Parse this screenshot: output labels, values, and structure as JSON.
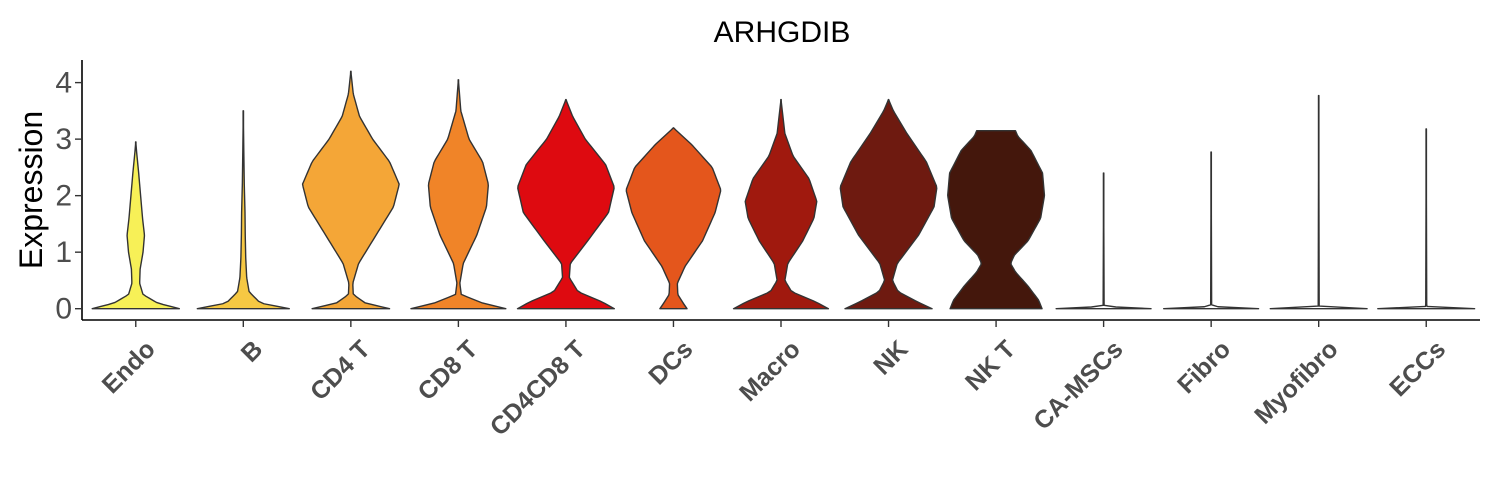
{
  "chart_data": {
    "type": "violin",
    "title": "ARHGDIB",
    "xlabel": "",
    "ylabel": "Expression",
    "ylim": [
      -0.2,
      4.4
    ],
    "yticks": [
      0,
      1,
      2,
      3,
      4
    ],
    "grid": false,
    "legend": "none",
    "categories": [
      "Endo",
      "B",
      "CD4 T",
      "CD8 T",
      "CD4CD8 T",
      "DCs",
      "Macro",
      "NK",
      "NK T",
      "CA-MSCs",
      "Fibro",
      "Myofibro",
      "ECCs"
    ],
    "colors": [
      "#F7F057",
      "#F6C843",
      "#F4A637",
      "#F08428",
      "#DE0A10",
      "#E4561C",
      "#A0190E",
      "#6E1A10",
      "#44170C",
      "#FFFFFF",
      "#FFFFFF",
      "#FFFFFF",
      "#FFFFFF"
    ],
    "max_values": [
      2.95,
      3.5,
      4.2,
      4.05,
      3.7,
      3.2,
      3.7,
      3.7,
      3.15,
      2.4,
      2.77,
      3.77,
      3.18
    ],
    "density_profiles": [
      [
        [
          0,
          0.9
        ],
        [
          0.1,
          0.45
        ],
        [
          0.25,
          0.15
        ],
        [
          0.45,
          0.08
        ],
        [
          0.7,
          0.09
        ],
        [
          1.0,
          0.15
        ],
        [
          1.3,
          0.18
        ],
        [
          1.6,
          0.14
        ],
        [
          2.0,
          0.1
        ],
        [
          2.4,
          0.06
        ],
        [
          2.75,
          0.02
        ],
        [
          2.95,
          0
        ]
      ],
      [
        [
          0,
          0.95
        ],
        [
          0.1,
          0.35
        ],
        [
          0.3,
          0.12
        ],
        [
          0.55,
          0.07
        ],
        [
          0.9,
          0.05
        ],
        [
          1.3,
          0.04
        ],
        [
          1.7,
          0.035
        ],
        [
          2.2,
          0.02
        ],
        [
          2.8,
          0.01
        ],
        [
          3.5,
          0
        ]
      ],
      [
        [
          0,
          0.8
        ],
        [
          0.1,
          0.3
        ],
        [
          0.25,
          0.05
        ],
        [
          0.45,
          0.04
        ],
        [
          0.8,
          0.16
        ],
        [
          1.3,
          0.52
        ],
        [
          1.8,
          0.88
        ],
        [
          2.2,
          1.0
        ],
        [
          2.6,
          0.8
        ],
        [
          3.0,
          0.45
        ],
        [
          3.4,
          0.18
        ],
        [
          3.8,
          0.05
        ],
        [
          4.2,
          0
        ]
      ],
      [
        [
          0,
          0.98
        ],
        [
          0.1,
          0.5
        ],
        [
          0.25,
          0.06
        ],
        [
          0.45,
          0.03
        ],
        [
          0.8,
          0.1
        ],
        [
          1.3,
          0.38
        ],
        [
          1.8,
          0.58
        ],
        [
          2.2,
          0.62
        ],
        [
          2.6,
          0.5
        ],
        [
          3.0,
          0.22
        ],
        [
          3.5,
          0.05
        ],
        [
          4.05,
          0
        ]
      ],
      [
        [
          0,
          1.0
        ],
        [
          0.12,
          0.75
        ],
        [
          0.3,
          0.25
        ],
        [
          0.55,
          0.07
        ],
        [
          0.8,
          0.09
        ],
        [
          1.2,
          0.45
        ],
        [
          1.7,
          0.88
        ],
        [
          2.15,
          1.0
        ],
        [
          2.55,
          0.82
        ],
        [
          3.0,
          0.4
        ],
        [
          3.4,
          0.14
        ],
        [
          3.7,
          0
        ]
      ],
      [
        [
          0,
          0.28
        ],
        [
          0.1,
          0.2
        ],
        [
          0.25,
          0.09
        ],
        [
          0.45,
          0.08
        ],
        [
          0.75,
          0.24
        ],
        [
          1.2,
          0.6
        ],
        [
          1.7,
          0.86
        ],
        [
          2.1,
          0.98
        ],
        [
          2.5,
          0.8
        ],
        [
          2.9,
          0.38
        ],
        [
          3.2,
          0
        ]
      ],
      [
        [
          0,
          0.98
        ],
        [
          0.12,
          0.72
        ],
        [
          0.3,
          0.22
        ],
        [
          0.5,
          0.08
        ],
        [
          0.8,
          0.14
        ],
        [
          1.2,
          0.45
        ],
        [
          1.6,
          0.68
        ],
        [
          1.9,
          0.74
        ],
        [
          2.3,
          0.58
        ],
        [
          2.7,
          0.25
        ],
        [
          3.1,
          0.08
        ],
        [
          3.7,
          0
        ]
      ],
      [
        [
          0,
          0.9
        ],
        [
          0.12,
          0.6
        ],
        [
          0.3,
          0.2
        ],
        [
          0.5,
          0.08
        ],
        [
          0.8,
          0.18
        ],
        [
          1.3,
          0.62
        ],
        [
          1.8,
          0.94
        ],
        [
          2.15,
          1.0
        ],
        [
          2.6,
          0.78
        ],
        [
          3.1,
          0.38
        ],
        [
          3.5,
          0.1
        ],
        [
          3.7,
          0
        ]
      ],
      [
        [
          0,
          0.95
        ],
        [
          0.15,
          0.88
        ],
        [
          0.4,
          0.66
        ],
        [
          0.65,
          0.4
        ],
        [
          0.8,
          0.3
        ],
        [
          0.95,
          0.38
        ],
        [
          1.2,
          0.66
        ],
        [
          1.6,
          0.92
        ],
        [
          2.0,
          1.0
        ],
        [
          2.4,
          0.96
        ],
        [
          2.8,
          0.72
        ],
        [
          3.05,
          0.45
        ],
        [
          3.15,
          0.4
        ]
      ],
      [
        [
          0,
          0.98
        ],
        [
          0.04,
          0.01
        ],
        [
          2.4,
          0
        ]
      ],
      [
        [
          0,
          0.98
        ],
        [
          0.04,
          0.01
        ],
        [
          2.77,
          0
        ]
      ],
      [
        [
          0,
          1.0
        ],
        [
          0.04,
          0.01
        ],
        [
          3.77,
          0
        ]
      ],
      [
        [
          0,
          1.0
        ],
        [
          0.04,
          0.01
        ],
        [
          3.18,
          0
        ]
      ]
    ]
  }
}
